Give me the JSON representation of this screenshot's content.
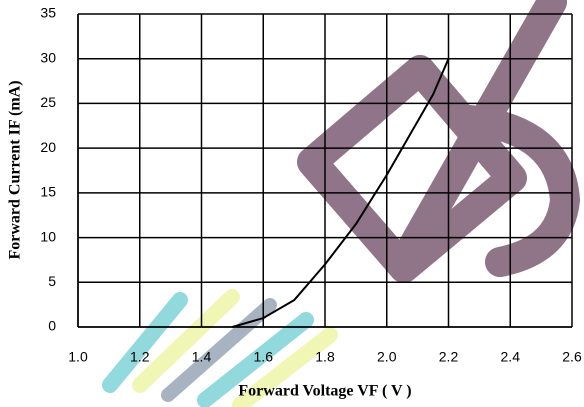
{
  "chart_data": {
    "type": "line",
    "x_label": "Forward Voltage VF ( V )",
    "y_label": "Forward Current IF (mA)",
    "x": [
      1.5,
      1.6,
      1.7,
      1.8,
      1.9,
      2.0,
      2.1,
      2.15,
      2.2
    ],
    "values": [
      0,
      1,
      3,
      7,
      11.5,
      17,
      23,
      26,
      30
    ],
    "color": "#000000",
    "xlim": [
      1.0,
      2.6
    ],
    "xticks": [
      {
        "value": 1,
        "label": "1.0"
      },
      1.2,
      1.4,
      1.6,
      1.8,
      {
        "value": 2,
        "label": "2.0"
      },
      2.2,
      2.4,
      2.6
    ],
    "ylim": [
      0,
      35
    ],
    "yticks": [
      0,
      5,
      10,
      15,
      20,
      25,
      30,
      35
    ],
    "grid": true
  }
}
